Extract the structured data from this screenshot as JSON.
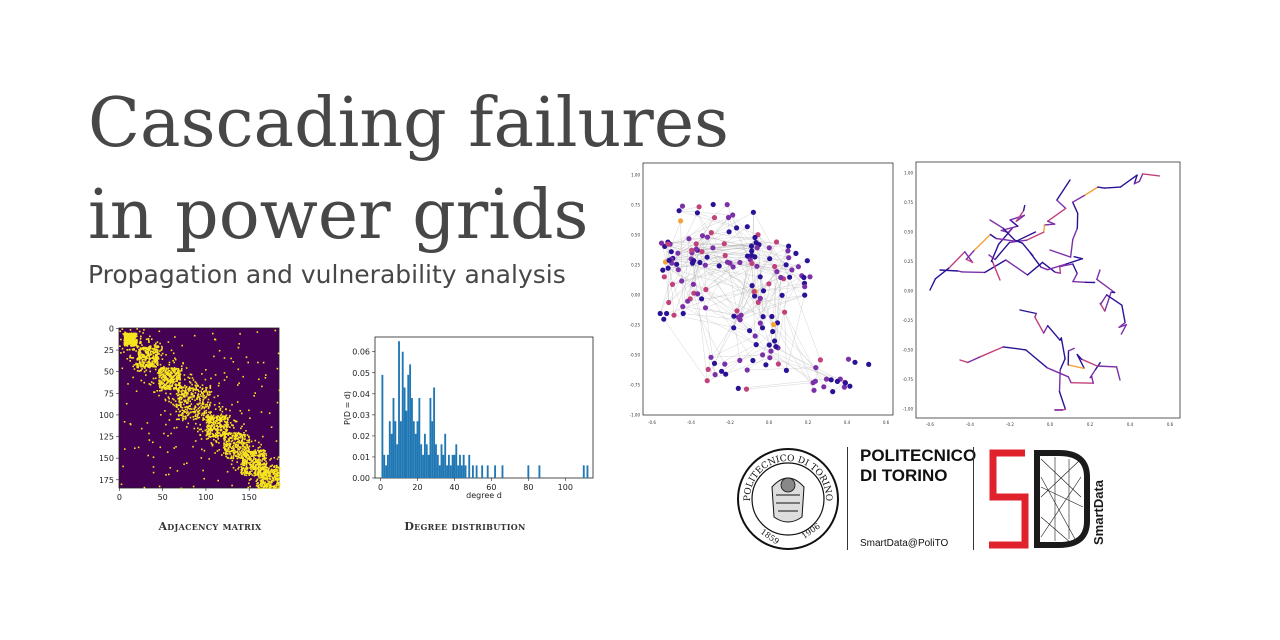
{
  "title": "Cascading failures in power grids",
  "subtitle": "Propagation and vulnerability analysis",
  "colors": {
    "text": "#474747",
    "matrix_background": "#440154",
    "matrix_fill": "#f5e51f",
    "histogram_bars": "#1f77b4",
    "node_dark": "#2b1196",
    "node_mid": "#7b2fa8",
    "node_light": "#c2417a",
    "node_hot": "#f2a33a",
    "edge_gray": "#aaaaaa",
    "logo_red": "#e0222d",
    "logo_black": "#1a1a1a"
  },
  "figures": {
    "adjacency": {
      "caption": "Adjacency matrix",
      "x_ticks": [
        "0",
        "50",
        "100",
        "150"
      ],
      "y_ticks": [
        "0",
        "25",
        "50",
        "75",
        "100",
        "125",
        "150",
        "175"
      ],
      "range": [
        0,
        185
      ]
    },
    "degree": {
      "caption": "Degree distribution",
      "xlabel": "degree d",
      "ylabel": "P(D = d)",
      "x_ticks": [
        "0",
        "20",
        "40",
        "60",
        "80",
        "100"
      ],
      "y_ticks": [
        "0.00",
        "0.01",
        "0.02",
        "0.03",
        "0.04",
        "0.05",
        "0.06"
      ]
    },
    "network": {
      "x_ticks": [
        "-0.6",
        "-0.4",
        "-0.2",
        "0.0",
        "0.2",
        "0.4",
        "0.6"
      ],
      "y_ticks": [
        "1.00",
        "0.75",
        "0.50",
        "0.25",
        "0.00",
        "-0.25",
        "-0.50",
        "-0.75",
        "-1.00"
      ]
    },
    "tree": {
      "x_ticks": [
        "-0.6",
        "-0.4",
        "-0.2",
        "0.0",
        "0.2",
        "0.4",
        "0.6"
      ],
      "y_ticks": [
        "1.00",
        "0.75",
        "0.50",
        "0.25",
        "0.00",
        "-0.25",
        "-0.50",
        "-0.75",
        "-1.00"
      ]
    }
  },
  "chart_data": {
    "type": "bar",
    "title": "",
    "xlabel": "degree d",
    "ylabel": "P(D = d)",
    "xlim": [
      -3,
      115
    ],
    "ylim": [
      0,
      0.067
    ],
    "x": [
      1,
      2,
      3,
      4,
      5,
      6,
      7,
      8,
      9,
      10,
      11,
      12,
      13,
      14,
      15,
      16,
      17,
      18,
      19,
      20,
      21,
      22,
      23,
      24,
      25,
      26,
      27,
      28,
      29,
      30,
      31,
      32,
      33,
      34,
      35,
      36,
      37,
      38,
      39,
      40,
      41,
      42,
      43,
      44,
      45,
      46,
      48,
      50,
      52,
      55,
      58,
      62,
      66,
      80,
      86,
      110,
      112
    ],
    "values": [
      0.049,
      0.011,
      0.006,
      0.011,
      0.027,
      0.021,
      0.038,
      0.027,
      0.016,
      0.065,
      0.027,
      0.06,
      0.043,
      0.032,
      0.049,
      0.054,
      0.038,
      0.027,
      0.021,
      0.027,
      0.038,
      0.016,
      0.011,
      0.021,
      0.016,
      0.011,
      0.038,
      0.027,
      0.043,
      0.016,
      0.011,
      0.006,
      0.016,
      0.011,
      0.021,
      0.006,
      0.011,
      0.006,
      0.011,
      0.011,
      0.016,
      0.006,
      0.011,
      0.006,
      0.011,
      0.006,
      0.011,
      0.006,
      0.006,
      0.006,
      0.006,
      0.006,
      0.006,
      0.006,
      0.006,
      0.006,
      0.006
    ]
  },
  "logos": {
    "university_name_line1": "POLITECNICO",
    "university_name_line2": "DI TORINO",
    "lab_handle": "SmartData@PoliTO",
    "seal_text_top": "POLITECNICO DI TORINO",
    "seal_year_left": "1859",
    "seal_year_right": "1906",
    "brand_mark": "SD",
    "brand_name": "SmartData"
  }
}
